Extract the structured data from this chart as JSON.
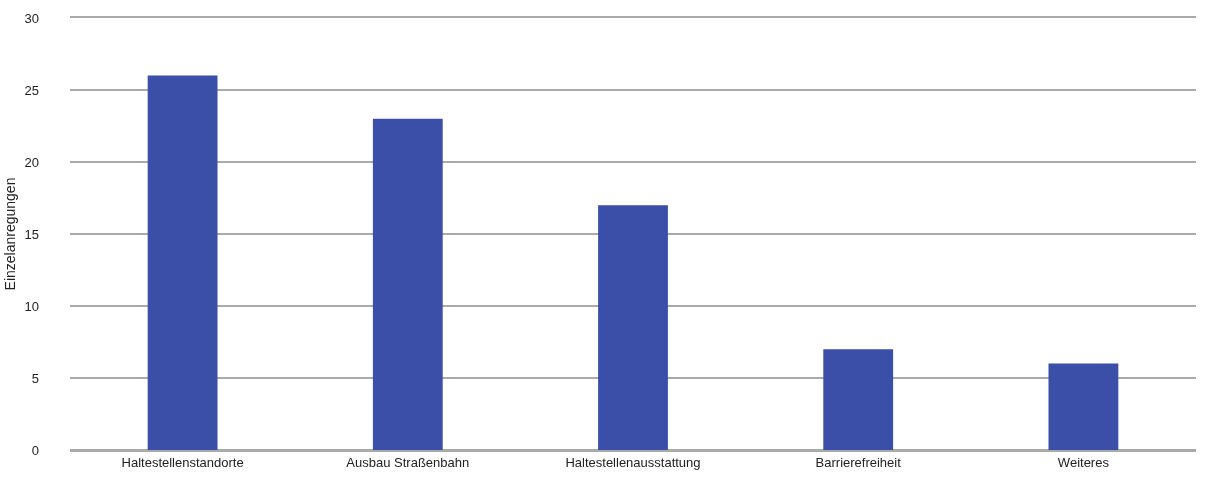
{
  "chart_data": {
    "type": "bar",
    "ylabel": "Einzelanregungen",
    "categories": [
      "Haltestellenstandorte",
      "Ausbau Straßenbahn",
      "Haltestellenausstattung",
      "Barrierefreiheit",
      "Weiteres"
    ],
    "values": [
      26,
      23,
      17,
      7,
      6
    ],
    "color": "#3b4fa8",
    "ylim": [
      0,
      30
    ],
    "yticks": [
      0,
      5,
      10,
      15,
      20,
      25,
      30
    ],
    "grid": "y"
  }
}
